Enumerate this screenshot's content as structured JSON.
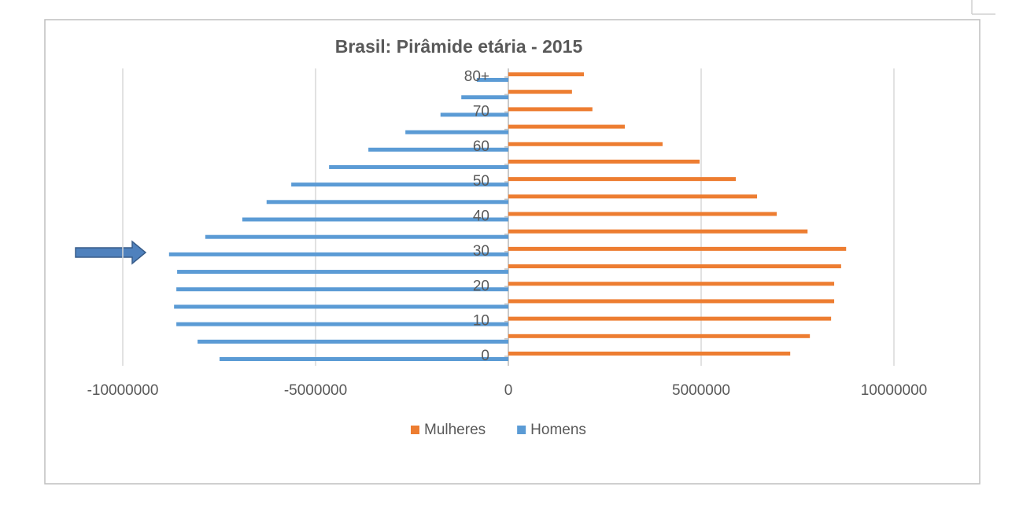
{
  "chart_data": {
    "type": "bar",
    "orientation": "horizontal",
    "title": "Brasil: Pirâmide etária - 2015",
    "categories": [
      "0",
      null,
      "10",
      null,
      "20",
      null,
      "30",
      null,
      "40",
      null,
      "50",
      null,
      "60",
      null,
      "70",
      null,
      "80+"
    ],
    "series": [
      {
        "name": "Mulheres",
        "color": "#ed7d31",
        "values": [
          7310000,
          7820000,
          8370000,
          8450000,
          8450000,
          8630000,
          8760000,
          7760000,
          6960000,
          6450000,
          5900000,
          4960000,
          4000000,
          3020000,
          2180000,
          1650000,
          1960000
        ]
      },
      {
        "name": "Homens",
        "color": "#5b9bd5",
        "values": [
          -7490000,
          -8060000,
          -8610000,
          -8670000,
          -8610000,
          -8590000,
          -8800000,
          -7860000,
          -6900000,
          -6270000,
          -5630000,
          -4650000,
          -3630000,
          -2670000,
          -1760000,
          -1220000,
          -820000
        ]
      }
    ],
    "xlim": [
      -10000000,
      10000000
    ],
    "xticks": [
      -10000000,
      -5000000,
      0,
      5000000,
      10000000
    ],
    "grid": true,
    "legend": "bottom"
  }
}
